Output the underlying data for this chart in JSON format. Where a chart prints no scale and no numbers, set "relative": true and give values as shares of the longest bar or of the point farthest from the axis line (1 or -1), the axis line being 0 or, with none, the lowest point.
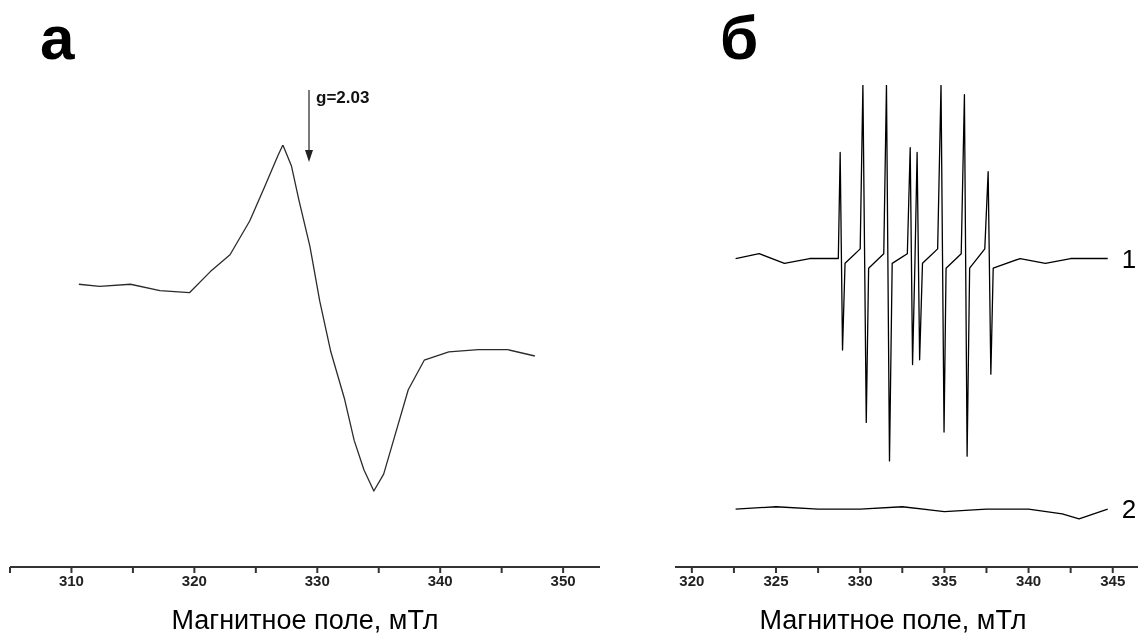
{
  "chart_data": [
    {
      "type": "line",
      "title": "а",
      "xlabel": "Магнитное поле, мТл",
      "relative": true,
      "xlim": [
        305,
        353
      ],
      "xticks": [
        {
          "value": 305,
          "label": null
        },
        310,
        {
          "value": 315,
          "label": null
        },
        320,
        {
          "value": 325,
          "label": null
        },
        330,
        {
          "value": 335,
          "label": null
        },
        340,
        {
          "value": 345,
          "label": null
        },
        350
      ],
      "annotations": [
        "g=2.03"
      ],
      "x": [
        310.6,
        312.3,
        314.8,
        317.2,
        319.6,
        321.3,
        322.9,
        324.5,
        325.7,
        326.8,
        327.2,
        327.9,
        328.5,
        329.4,
        330.2,
        331.1,
        332.2,
        333.0,
        333.8,
        334.6,
        335.4,
        336.2,
        337.4,
        338.7,
        340.7,
        343.1,
        345.5,
        347.7
      ],
      "series": [
        {
          "color": "#2b2b2b",
          "values": [
            0.67,
            0.665,
            0.67,
            0.655,
            0.65,
            0.7,
            0.74,
            0.82,
            0.9,
            0.975,
            1.0,
            0.95,
            0.87,
            0.76,
            0.63,
            0.51,
            0.4,
            0.3,
            0.23,
            0.18,
            0.22,
            0.3,
            0.42,
            0.49,
            0.51,
            0.515,
            0.515,
            0.5
          ]
        }
      ]
    },
    {
      "type": "line",
      "title": "б",
      "xlabel": "Магнитное поле, мТл",
      "relative": true,
      "xlim": [
        319,
        346.5
      ],
      "xticks": [
        320,
        {
          "value": 322.5,
          "label": null
        },
        325,
        {
          "value": 327.5,
          "label": null
        },
        330,
        {
          "value": 332.5,
          "label": null
        },
        335,
        {
          "value": 337.5,
          "label": null
        },
        340,
        {
          "value": 342.5,
          "label": null
        },
        345
      ],
      "series": [
        {
          "name": "1",
          "color": "#000000",
          "x": [
            322.6,
            324,
            325.5,
            327,
            328.7,
            328.81,
            328.95,
            329.1,
            330.0,
            330.16,
            330.36,
            330.5,
            331.4,
            331.56,
            331.74,
            331.9,
            332.8,
            332.97,
            333.11,
            333.25,
            333.38,
            333.53,
            333.7,
            334.6,
            334.8,
            334.98,
            335.1,
            336.0,
            336.19,
            336.35,
            336.5,
            337.4,
            337.6,
            337.76,
            337.9,
            339.5,
            341,
            342.5,
            344.7
          ],
          "values": [
            0.64,
            0.65,
            0.63,
            0.64,
            0.64,
            0.86,
            0.45,
            0.63,
            0.66,
            1.0,
            0.3,
            0.62,
            0.65,
            1.0,
            0.22,
            0.63,
            0.65,
            0.87,
            0.42,
            0.63,
            0.86,
            0.43,
            0.63,
            0.66,
            1.0,
            0.28,
            0.62,
            0.65,
            0.98,
            0.23,
            0.62,
            0.66,
            0.82,
            0.4,
            0.62,
            0.64,
            0.63,
            0.64,
            0.64
          ]
        },
        {
          "name": "2",
          "color": "#000000",
          "x": [
            322.6,
            325,
            327.5,
            330,
            332.5,
            335,
            337.5,
            340,
            342,
            343,
            344.7
          ],
          "values": [
            0.12,
            0.125,
            0.12,
            0.12,
            0.125,
            0.115,
            0.12,
            0.12,
            0.11,
            0.1,
            0.12
          ]
        }
      ]
    }
  ]
}
